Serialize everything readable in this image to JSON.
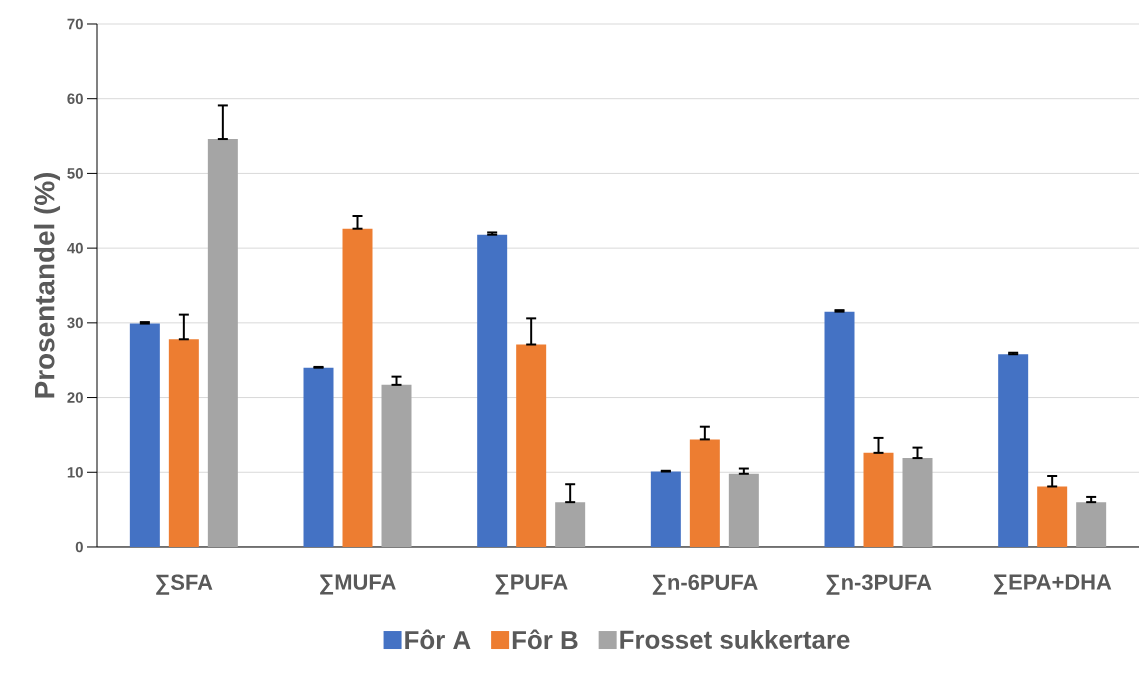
{
  "chart_data": {
    "type": "bar",
    "ylabel": "Prosentandel (%)",
    "categories": [
      "∑SFA",
      "∑MUFA",
      "∑PUFA",
      "∑n-6PUFA",
      "∑n-3PUFA",
      "∑EPA+DHA"
    ],
    "series": [
      {
        "name": "Fôr A",
        "color": "#4472c4",
        "values": [
          29.9,
          24.0,
          41.8,
          10.1,
          31.5,
          25.8
        ],
        "errors": [
          [
            29.9,
            30.1
          ],
          [
            24.0,
            24.1
          ],
          [
            41.8,
            42.1
          ],
          [
            10.1,
            10.2
          ],
          [
            31.5,
            31.7
          ],
          [
            25.8,
            26.0
          ]
        ]
      },
      {
        "name": "Fôr B",
        "color": "#ed7d31",
        "values": [
          27.8,
          42.6,
          27.1,
          14.4,
          12.6,
          8.1
        ],
        "errors": [
          [
            27.8,
            31.1
          ],
          [
            42.6,
            44.3
          ],
          [
            27.1,
            30.6
          ],
          [
            14.4,
            16.1
          ],
          [
            12.6,
            14.6
          ],
          [
            8.1,
            9.5
          ]
        ]
      },
      {
        "name": "Frosset sukkertare",
        "color": "#a5a5a5",
        "values": [
          54.6,
          21.7,
          6.0,
          9.8,
          11.9,
          6.0
        ],
        "errors": [
          [
            54.6,
            59.1
          ],
          [
            21.7,
            22.8
          ],
          [
            6.0,
            8.4
          ],
          [
            9.8,
            10.5
          ],
          [
            11.9,
            13.3
          ],
          [
            6.0,
            6.7
          ]
        ]
      }
    ],
    "ylim": [
      0,
      70
    ],
    "yticks": [
      0,
      10,
      20,
      30,
      40,
      50,
      60,
      70
    ],
    "grid": "y",
    "legend": "bottom"
  }
}
